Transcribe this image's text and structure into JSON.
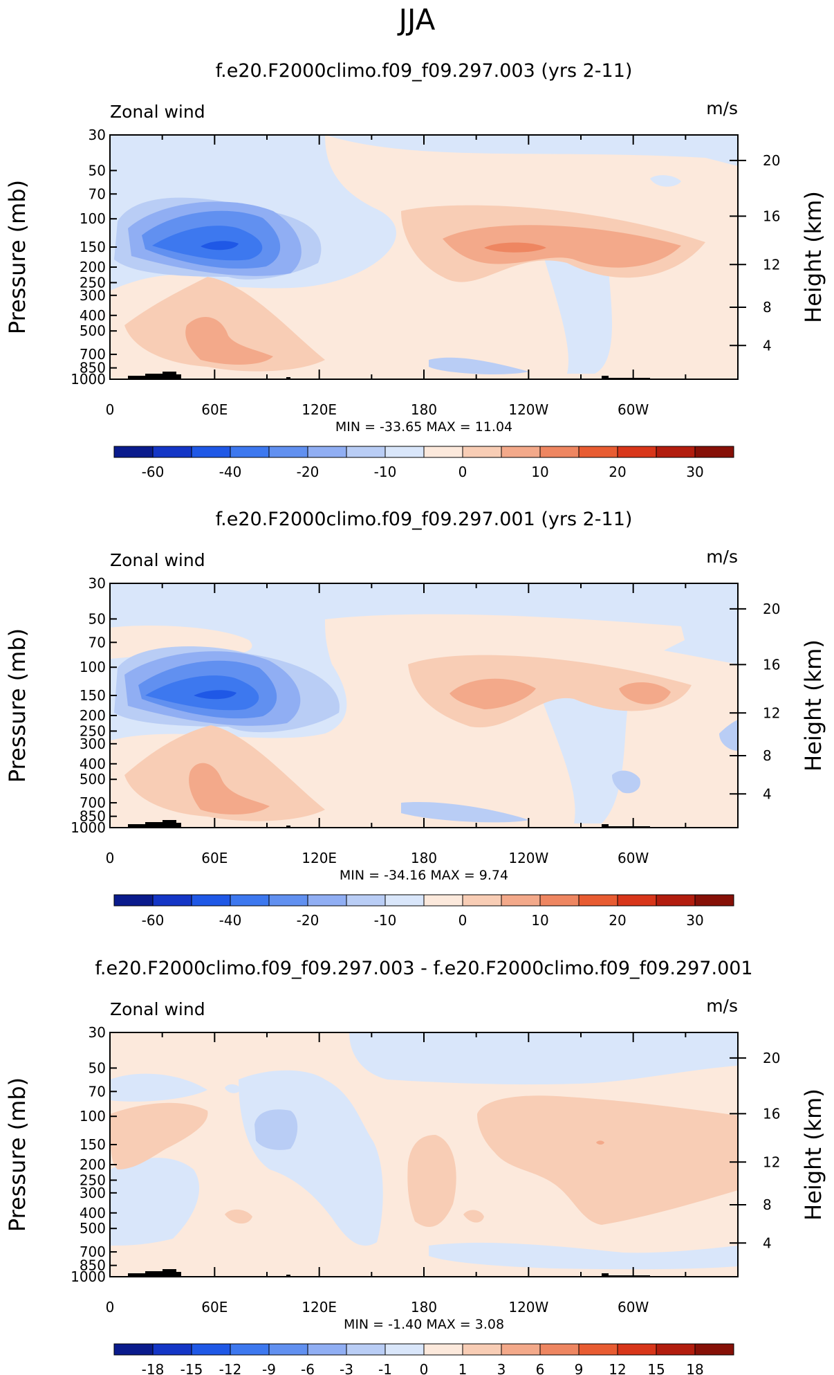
{
  "page_title": "JJA",
  "colors": {
    "palette": [
      "#0a1b8c",
      "#1436c6",
      "#1f58e6",
      "#3d78ef",
      "#6190f0",
      "#90aef3",
      "#b9cdf5",
      "#d9e6fa",
      "#fce9dc",
      "#f8cdb5",
      "#f3a98a",
      "#ee8661",
      "#e85c32",
      "#d8361a",
      "#b21d0e",
      "#861007"
    ],
    "zero": "#fce9dc",
    "topo": "#000000"
  },
  "chart_data": [
    {
      "type": "contour",
      "title": "f.e20.F2000climo.f09_f09.297.003 (yrs 2-11)",
      "field_label": "Zonal wind",
      "units": "m/s",
      "ylabel": "Pressure (mb)",
      "ylabel_right": "Height (km)",
      "x_ticks": [
        "0",
        "60E",
        "120E",
        "180",
        "120W",
        "60W"
      ],
      "y_ticks": [
        "30",
        "50",
        "70",
        "100",
        "150",
        "200",
        "250",
        "300",
        "400",
        "500",
        "700",
        "850",
        "1000"
      ],
      "y_ticks_right": [
        "20",
        "16",
        "12",
        "8",
        "4"
      ],
      "stats": "MIN = -33.65   MAX =  11.04",
      "min": -33.65,
      "max": 11.04,
      "colorbar_levels": [
        "-60",
        "-40",
        "-20",
        "-10",
        "0",
        "10",
        "20",
        "30"
      ],
      "contour_levels": [
        -70,
        -60,
        -50,
        -40,
        -30,
        -20,
        -15,
        -10,
        -5,
        0,
        5,
        10,
        15,
        20,
        25,
        30,
        35
      ],
      "features": [
        {
          "lon": 70,
          "p": 150,
          "value": -33.65
        },
        {
          "lon": 215,
          "p": 150,
          "value": 11.04
        },
        {
          "lon": 50,
          "p": 600,
          "value": 8
        }
      ]
    },
    {
      "type": "contour",
      "title": "f.e20.F2000climo.f09_f09.297.001 (yrs 2-11)",
      "field_label": "Zonal wind",
      "units": "m/s",
      "ylabel": "Pressure (mb)",
      "ylabel_right": "Height (km)",
      "x_ticks": [
        "0",
        "60E",
        "120E",
        "180",
        "120W",
        "60W"
      ],
      "y_ticks": [
        "30",
        "50",
        "70",
        "100",
        "150",
        "200",
        "250",
        "300",
        "400",
        "500",
        "700",
        "850",
        "1000"
      ],
      "y_ticks_right": [
        "20",
        "16",
        "12",
        "8",
        "4"
      ],
      "stats": "MIN = -34.16   MAX =   9.74",
      "min": -34.16,
      "max": 9.74,
      "colorbar_levels": [
        "-60",
        "-40",
        "-20",
        "-10",
        "0",
        "10",
        "20",
        "30"
      ],
      "contour_levels": [
        -70,
        -60,
        -50,
        -40,
        -30,
        -20,
        -15,
        -10,
        -5,
        0,
        5,
        10,
        15,
        20,
        25,
        30,
        35
      ],
      "features": [
        {
          "lon": 70,
          "p": 150,
          "value": -34.16
        },
        {
          "lon": 205,
          "p": 150,
          "value": 9.74
        },
        {
          "lon": 50,
          "p": 600,
          "value": 7
        }
      ]
    },
    {
      "type": "contour",
      "title": "f.e20.F2000climo.f09_f09.297.003 - f.e20.F2000climo.f09_f09.297.001",
      "field_label": "Zonal wind",
      "units": "m/s",
      "ylabel": "Pressure (mb)",
      "ylabel_right": "Height (km)",
      "x_ticks": [
        "0",
        "60E",
        "120E",
        "180",
        "120W",
        "60W"
      ],
      "y_ticks": [
        "30",
        "50",
        "70",
        "100",
        "150",
        "200",
        "250",
        "300",
        "400",
        "500",
        "700",
        "850",
        "1000"
      ],
      "y_ticks_right": [
        "20",
        "16",
        "12",
        "8",
        "4"
      ],
      "stats": "MIN =   -1.40   MAX =   3.08",
      "min": -1.4,
      "max": 3.08,
      "colorbar_levels": [
        "-18",
        "-15",
        "-12",
        "-9",
        "-6",
        "-3",
        "-1",
        "0",
        "1",
        "3",
        "6",
        "9",
        "12",
        "15",
        "18"
      ],
      "contour_levels": [
        -21,
        -18,
        -15,
        -12,
        -9,
        -6,
        -3,
        -1,
        0,
        1,
        3,
        6,
        9,
        12,
        15,
        18,
        21
      ],
      "features": [
        {
          "lon": 100,
          "p": 150,
          "value": -1.4
        },
        {
          "lon": 285,
          "p": 150,
          "value": 3.08
        }
      ]
    }
  ]
}
